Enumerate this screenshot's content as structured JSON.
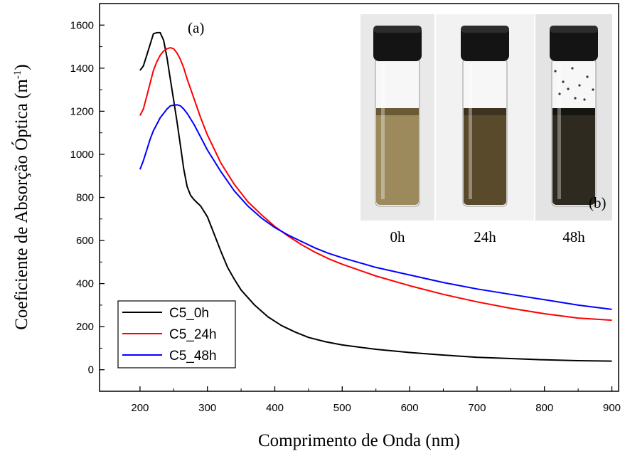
{
  "chart_data": {
    "type": "line",
    "title": "",
    "xlabel": "Comprimento de Onda (nm)",
    "ylabel": "Coeficiente de Absorção Óptica (m",
    "ylabel_sup": "-1",
    "ylabel_close": ")",
    "xlim": [
      140,
      910
    ],
    "ylim": [
      -100,
      1700
    ],
    "xticks": [
      200,
      300,
      400,
      500,
      600,
      700,
      800,
      900
    ],
    "yticks": [
      0,
      200,
      400,
      600,
      800,
      1000,
      1200,
      1400,
      1600
    ],
    "grid": false,
    "legend_position": "bottom-left",
    "panel_label_a": "(a)",
    "series": [
      {
        "name": "C5_0h",
        "color": "#000000",
        "x": [
          200,
          205,
          210,
          215,
          220,
          225,
          230,
          235,
          240,
          245,
          250,
          255,
          260,
          265,
          270,
          275,
          280,
          285,
          290,
          300,
          310,
          320,
          330,
          340,
          350,
          370,
          390,
          410,
          430,
          450,
          475,
          500,
          550,
          600,
          650,
          700,
          750,
          800,
          850,
          900
        ],
        "y": [
          1390,
          1410,
          1460,
          1510,
          1560,
          1565,
          1565,
          1530,
          1450,
          1350,
          1250,
          1150,
          1040,
          930,
          850,
          810,
          790,
          775,
          760,
          710,
          630,
          550,
          475,
          420,
          370,
          300,
          245,
          205,
          175,
          150,
          130,
          115,
          95,
          80,
          68,
          58,
          52,
          46,
          42,
          40
        ]
      },
      {
        "name": "C5_24h",
        "color": "#ff0000",
        "x": [
          200,
          205,
          210,
          215,
          220,
          225,
          230,
          235,
          240,
          245,
          250,
          255,
          260,
          265,
          270,
          280,
          290,
          300,
          320,
          340,
          360,
          380,
          400,
          420,
          440,
          460,
          480,
          500,
          550,
          600,
          650,
          700,
          750,
          800,
          850,
          900
        ],
        "y": [
          1180,
          1210,
          1270,
          1330,
          1390,
          1430,
          1460,
          1480,
          1490,
          1495,
          1490,
          1470,
          1440,
          1400,
          1350,
          1260,
          1170,
          1090,
          960,
          860,
          780,
          720,
          665,
          620,
          580,
          545,
          515,
          490,
          435,
          390,
          350,
          315,
          285,
          260,
          240,
          230
        ]
      },
      {
        "name": "C5_48h",
        "color": "#0000ff",
        "x": [
          200,
          205,
          210,
          215,
          220,
          225,
          230,
          235,
          240,
          245,
          250,
          255,
          260,
          265,
          270,
          280,
          290,
          300,
          320,
          340,
          360,
          380,
          400,
          420,
          440,
          460,
          480,
          500,
          550,
          600,
          650,
          700,
          750,
          800,
          850,
          900
        ],
        "y": [
          930,
          970,
          1020,
          1070,
          1110,
          1140,
          1170,
          1190,
          1210,
          1225,
          1228,
          1230,
          1225,
          1210,
          1190,
          1140,
          1080,
          1020,
          920,
          830,
          760,
          705,
          660,
          625,
          595,
          565,
          540,
          520,
          475,
          440,
          405,
          375,
          350,
          325,
          300,
          280
        ]
      }
    ],
    "inset": {
      "label": "(b)",
      "vials": [
        {
          "label": "0h",
          "liquid_color": "#9c8a5c",
          "top_color": "#6a5a36",
          "bg": "#e9e9e9"
        },
        {
          "label": "24h",
          "liquid_color": "#5a4a2c",
          "top_color": "#3e3320",
          "bg": "#f2f2f2"
        },
        {
          "label": "48h",
          "liquid_color": "#2e2a20",
          "top_color": "#17150f",
          "bg": "#e4e4e4"
        }
      ]
    }
  }
}
